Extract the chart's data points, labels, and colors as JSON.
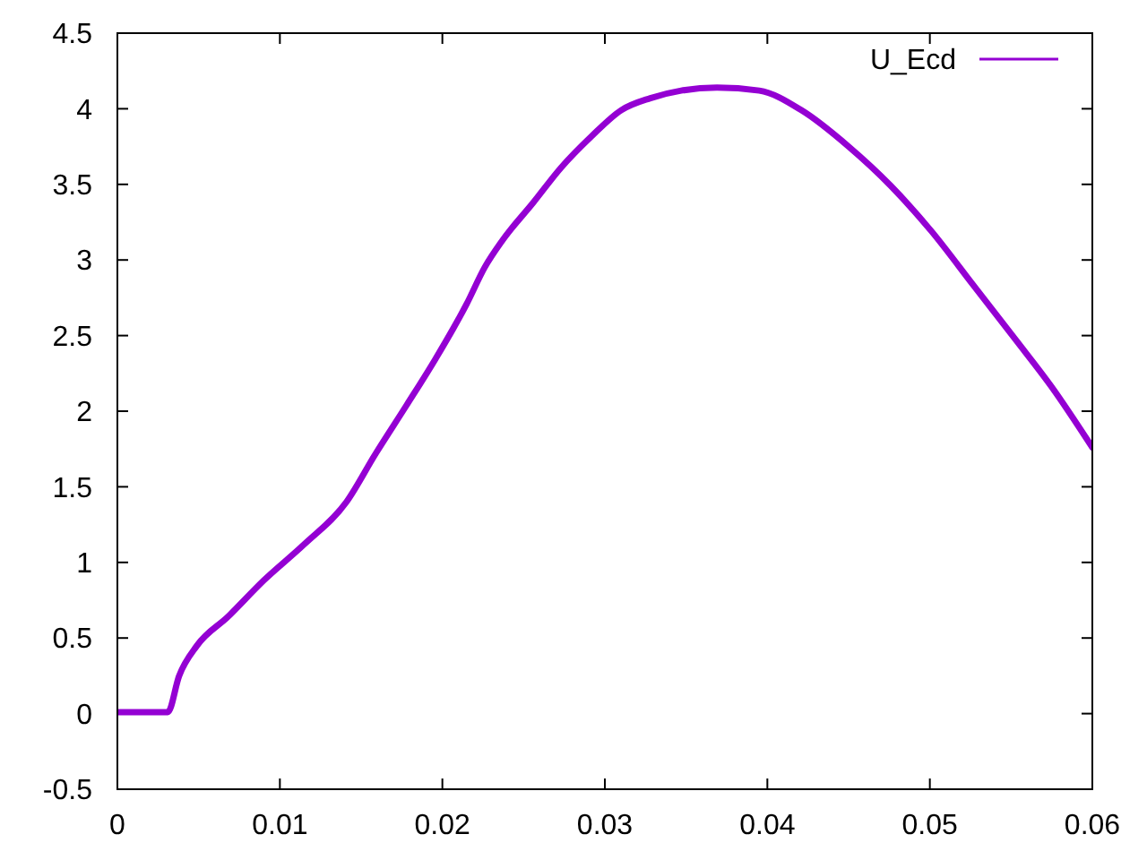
{
  "chart_data": {
    "type": "line",
    "x": [
      0,
      0.001,
      0.002,
      0.0031,
      0.0038,
      0.0049,
      0.0068,
      0.009,
      0.0115,
      0.0141,
      0.0159,
      0.0178,
      0.0196,
      0.0215,
      0.0226,
      0.0237,
      0.0256,
      0.0273,
      0.0292,
      0.031,
      0.0328,
      0.0347,
      0.0369,
      0.0395,
      0.0421,
      0.045,
      0.0476,
      0.0501,
      0.0527,
      0.0553,
      0.0575,
      0.06
    ],
    "series": [
      {
        "name": "U_Ecd",
        "color": "#9400d3",
        "values": [
          0.01,
          0.01,
          0.01,
          0.01,
          0.25,
          0.45,
          0.64,
          0.88,
          1.12,
          1.4,
          1.72,
          2.04,
          2.35,
          2.71,
          2.95,
          3.13,
          3.38,
          3.61,
          3.82,
          3.99,
          4.07,
          4.12,
          4.14,
          4.12,
          3.99,
          3.75,
          3.49,
          3.19,
          2.83,
          2.47,
          2.16,
          1.76
        ]
      }
    ],
    "xlim": [
      0,
      0.06
    ],
    "ylim": [
      -0.5,
      4.5
    ],
    "xticks": [
      0,
      0.01,
      0.02,
      0.03,
      0.04,
      0.05,
      0.06
    ],
    "yticks": [
      -0.5,
      0,
      0.5,
      1,
      1.5,
      2,
      2.5,
      3,
      3.5,
      4,
      4.5
    ],
    "legend": "top right",
    "grid": false
  }
}
